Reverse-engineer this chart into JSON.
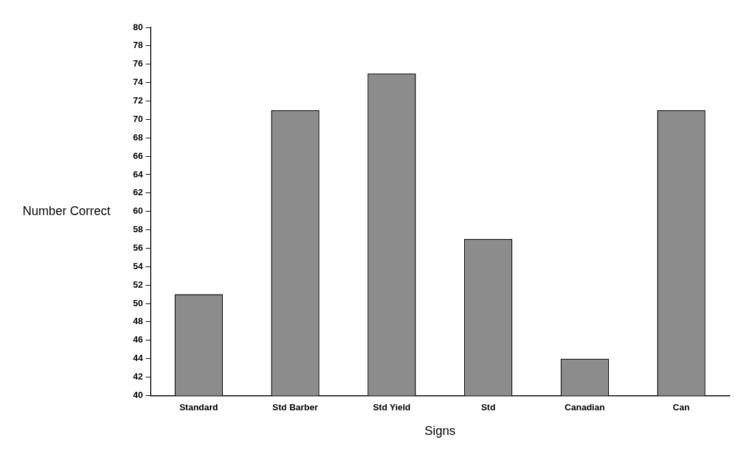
{
  "chart_data": {
    "type": "bar",
    "xlabel": "Signs",
    "ylabel": "Number Correct",
    "categories": [
      "Standard",
      "Std Barber",
      "Std Yield",
      "Std",
      "Canadian",
      "Can"
    ],
    "values": [
      51,
      71,
      75,
      57,
      44,
      71
    ],
    "color": "#8c8c8c",
    "ylim": [
      40,
      80
    ],
    "yticks": [
      40,
      42,
      44,
      46,
      48,
      50,
      52,
      54,
      56,
      58,
      60,
      62,
      64,
      66,
      68,
      70,
      72,
      74,
      76,
      78,
      80
    ],
    "grid": false,
    "legend": false
  }
}
